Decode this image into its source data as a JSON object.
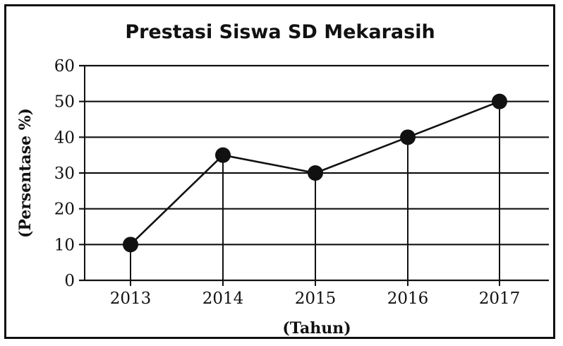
{
  "chart_data": {
    "type": "line",
    "title": "Prestasi Siswa SD Mekarasih",
    "xlabel": "(Tahun)",
    "ylabel": "(Persentase %)",
    "categories": [
      "2013",
      "2014",
      "2015",
      "2016",
      "2017"
    ],
    "values": [
      10,
      35,
      30,
      40,
      50
    ],
    "ylim": [
      0,
      60
    ],
    "yticks": [
      0,
      10,
      20,
      30,
      40,
      50,
      60
    ],
    "grid": "horizontal",
    "line_color": "#111111",
    "marker": "filled-circle"
  }
}
